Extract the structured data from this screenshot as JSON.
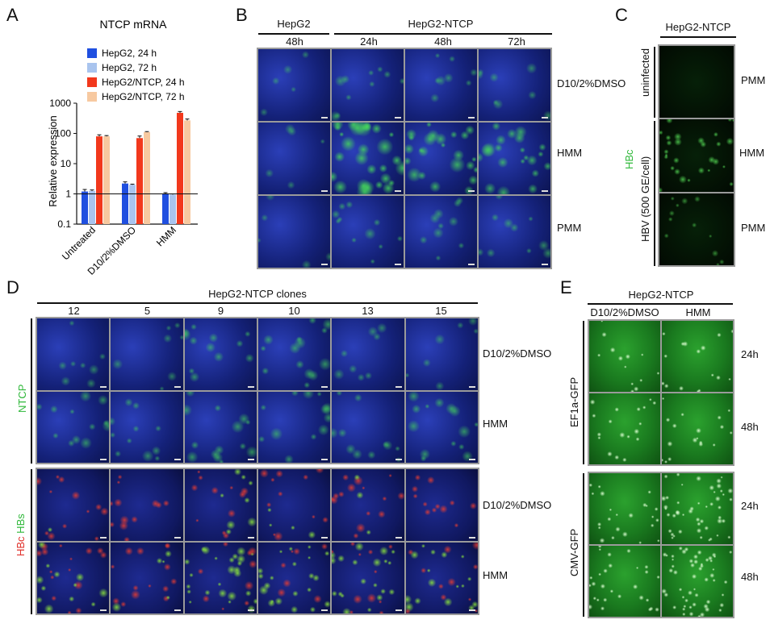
{
  "panels": {
    "a": "A",
    "b": "B",
    "c": "C",
    "d": "D",
    "e": "E"
  },
  "colors": {
    "blue_nuclei": "#1a2a9a",
    "green": "#2fd040",
    "red": "#e0302a",
    "series": [
      "#1f4fe0",
      "#a9c4ee",
      "#f2381c",
      "#f7c9a0"
    ]
  },
  "chart_data": {
    "type": "bar",
    "title": "NTCP mRNA",
    "ylabel": "Relative expression",
    "xlabel": "",
    "yscale": "log",
    "ylim": [
      0.1,
      1000
    ],
    "yticks": [
      "0.1",
      "1",
      "10",
      "100",
      "1000"
    ],
    "reference_line": 1,
    "categories": [
      "Untreated",
      "D10/2%DMSO",
      "HMM"
    ],
    "series": [
      {
        "name": "HepG2, 24 h",
        "values": [
          1.2,
          2.2,
          1.0
        ],
        "errors": [
          0.2,
          0.3,
          0.1
        ]
      },
      {
        "name": "HepG2, 72 h",
        "values": [
          1.25,
          2.0,
          0.95
        ],
        "errors": [
          0.1,
          0.1,
          0.05
        ]
      },
      {
        "name": "HepG2/NTCP, 24 h",
        "values": [
          80,
          70,
          480
        ],
        "errors": [
          10,
          12,
          50
        ]
      },
      {
        "name": "HepG2/NTCP, 72 h",
        "values": [
          80,
          110,
          270
        ],
        "errors": [
          5,
          5,
          30
        ]
      }
    ],
    "legend_position": "top-left",
    "grid": false
  },
  "panelB": {
    "group1": "HepG2",
    "group2": "HepG2-NTCP",
    "cols": [
      "48h",
      "24h",
      "48h",
      "72h"
    ],
    "rows": [
      "D10/2%DMSO",
      "HMM",
      "PMM"
    ],
    "green_levels": [
      [
        0.05,
        0.2,
        0.15,
        0.15
      ],
      [
        0.05,
        0.85,
        0.7,
        0.6
      ],
      [
        0.05,
        0.25,
        0.2,
        0.2
      ]
    ]
  },
  "panelC": {
    "header": "HepG2-NTCP",
    "stain": "HBc",
    "uninfected": "uninfected",
    "infected": "HBV (500 GE/cell)",
    "rows": [
      "PMM",
      "HMM",
      "PMM"
    ],
    "green_levels": [
      0.0,
      0.7,
      0.3
    ]
  },
  "panelD": {
    "header": "HepG2-NTCP clones",
    "cols": [
      "12",
      "5",
      "9",
      "10",
      "13",
      "15"
    ],
    "rows_top": [
      "D10/2%DMSO",
      "HMM"
    ],
    "rows_bottom": [
      "D10/2%DMSO",
      "HMM"
    ],
    "stain_top": "NTCP",
    "stain_bottom_red": "HBc",
    "stain_bottom_green": "HBs"
  },
  "panelE": {
    "header": "HepG2-NTCP",
    "cols": [
      "D10/2%DMSO",
      "HMM"
    ],
    "rows": [
      "24h",
      "48h",
      "24h",
      "48h"
    ],
    "group_top": "EF1a-GFP",
    "group_bottom": "CMV-GFP"
  }
}
